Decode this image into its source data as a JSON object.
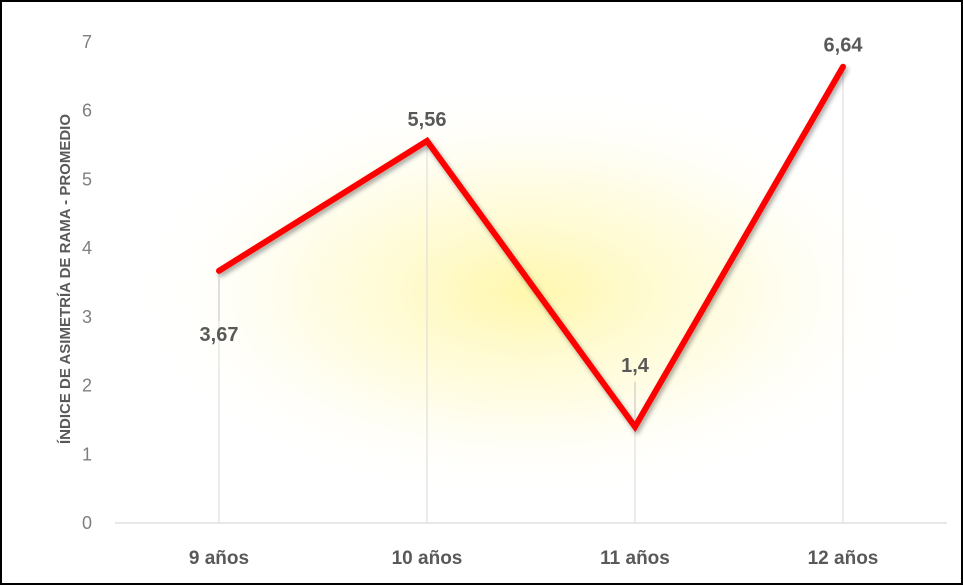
{
  "chart_data": {
    "type": "line",
    "categories": [
      "9 años",
      "10 años",
      "11 años",
      "12 años"
    ],
    "series": [
      {
        "values": [
          3.67,
          5.56,
          1.4,
          6.64
        ]
      }
    ],
    "data_labels": [
      "3,67",
      "5,56",
      "1,4",
      "6,64"
    ],
    "ylabel": "ÍNDICE DE ASIMETRÍA DE RAMA - PROMEDIO",
    "xlabel": "",
    "ylim": [
      0,
      7
    ],
    "yticks": [
      0,
      1,
      2,
      3,
      4,
      5,
      6,
      7
    ],
    "grid": false,
    "legend": "none",
    "line_color": "#ff0000",
    "background_glow": "#fff7a8"
  }
}
